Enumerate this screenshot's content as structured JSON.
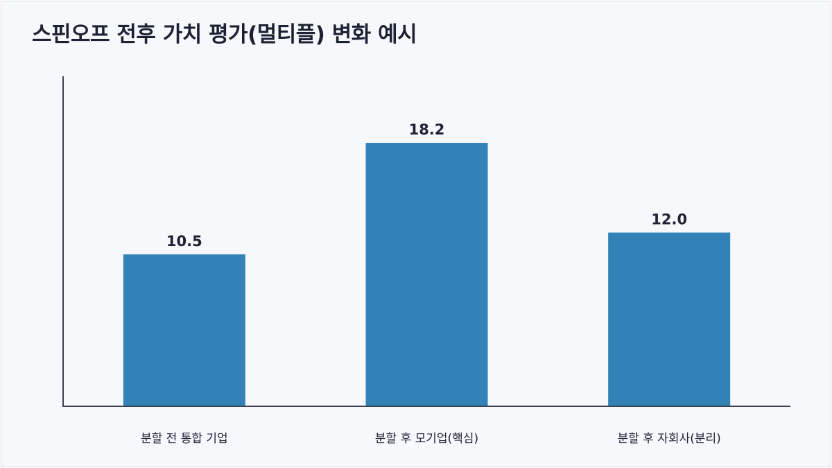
{
  "chart_data": {
    "type": "bar",
    "title": "스핀오프 전후 가치 평가(멀티플) 변화 예시",
    "categories": [
      "분할 전 통합 기업",
      "분할 후 모기업(핵심)",
      "분할 후 자회사(분리)"
    ],
    "values": [
      10.5,
      18.2,
      12.0
    ],
    "value_labels": [
      "10.5",
      "18.2",
      "12.0"
    ],
    "xlabel": "",
    "ylabel": "",
    "ylim": [
      0,
      22.8
    ],
    "grid": false,
    "legend": "none",
    "colors": {
      "bar": "#3282b8",
      "axis": "#3c4150",
      "text": "#1c2233",
      "background": "#f7f8fc"
    }
  }
}
